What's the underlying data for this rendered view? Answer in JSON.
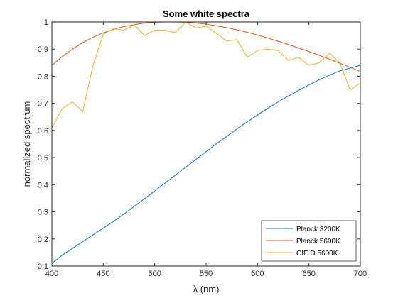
{
  "chart_data": {
    "type": "line",
    "title": "Some white spectra",
    "xlabel": "λ (nm)",
    "ylabel": "normalized spectrum",
    "xlim": [
      400,
      700
    ],
    "ylim": [
      0.1,
      1
    ],
    "xticks": [
      400,
      450,
      500,
      550,
      600,
      650,
      700
    ],
    "yticks": [
      0.1,
      0.2,
      0.3,
      0.4,
      0.5,
      0.6,
      0.7,
      0.8,
      0.9,
      1
    ],
    "grid": false,
    "legend_position": "bottom-right",
    "x": [
      400,
      410,
      420,
      430,
      440,
      450,
      460,
      470,
      480,
      490,
      500,
      510,
      520,
      530,
      540,
      550,
      560,
      570,
      580,
      590,
      600,
      610,
      620,
      630,
      640,
      650,
      660,
      670,
      680,
      690,
      700
    ],
    "series": [
      {
        "name": "Planck 3200K",
        "color": "#0072bd",
        "values": [
          0.11,
          0.14,
          0.165,
          0.19,
          0.215,
          0.24,
          0.265,
          0.292,
          0.32,
          0.348,
          0.377,
          0.406,
          0.435,
          0.464,
          0.493,
          0.522,
          0.551,
          0.578,
          0.606,
          0.632,
          0.657,
          0.682,
          0.705,
          0.727,
          0.748,
          0.768,
          0.787,
          0.804,
          0.82,
          0.83,
          0.84
        ]
      },
      {
        "name": "Planck 5600K",
        "color": "#d95319",
        "values": [
          0.84,
          0.872,
          0.9,
          0.924,
          0.944,
          0.96,
          0.973,
          0.983,
          0.99,
          0.996,
          0.999,
          1.0,
          1.0,
          0.999,
          0.996,
          0.992,
          0.986,
          0.979,
          0.971,
          0.962,
          0.952,
          0.941,
          0.929,
          0.917,
          0.904,
          0.891,
          0.877,
          0.863,
          0.848,
          0.833,
          0.818
        ]
      },
      {
        "name": "CIE D 5600K",
        "color": "#edb120",
        "values": [
          0.61,
          0.68,
          0.705,
          0.67,
          0.84,
          0.955,
          0.975,
          0.97,
          0.99,
          0.95,
          0.97,
          0.97,
          0.96,
          1.0,
          0.978,
          0.985,
          0.958,
          0.93,
          0.935,
          0.87,
          0.895,
          0.9,
          0.895,
          0.858,
          0.87,
          0.84,
          0.85,
          0.885,
          0.85,
          0.75,
          0.775
        ]
      }
    ]
  }
}
